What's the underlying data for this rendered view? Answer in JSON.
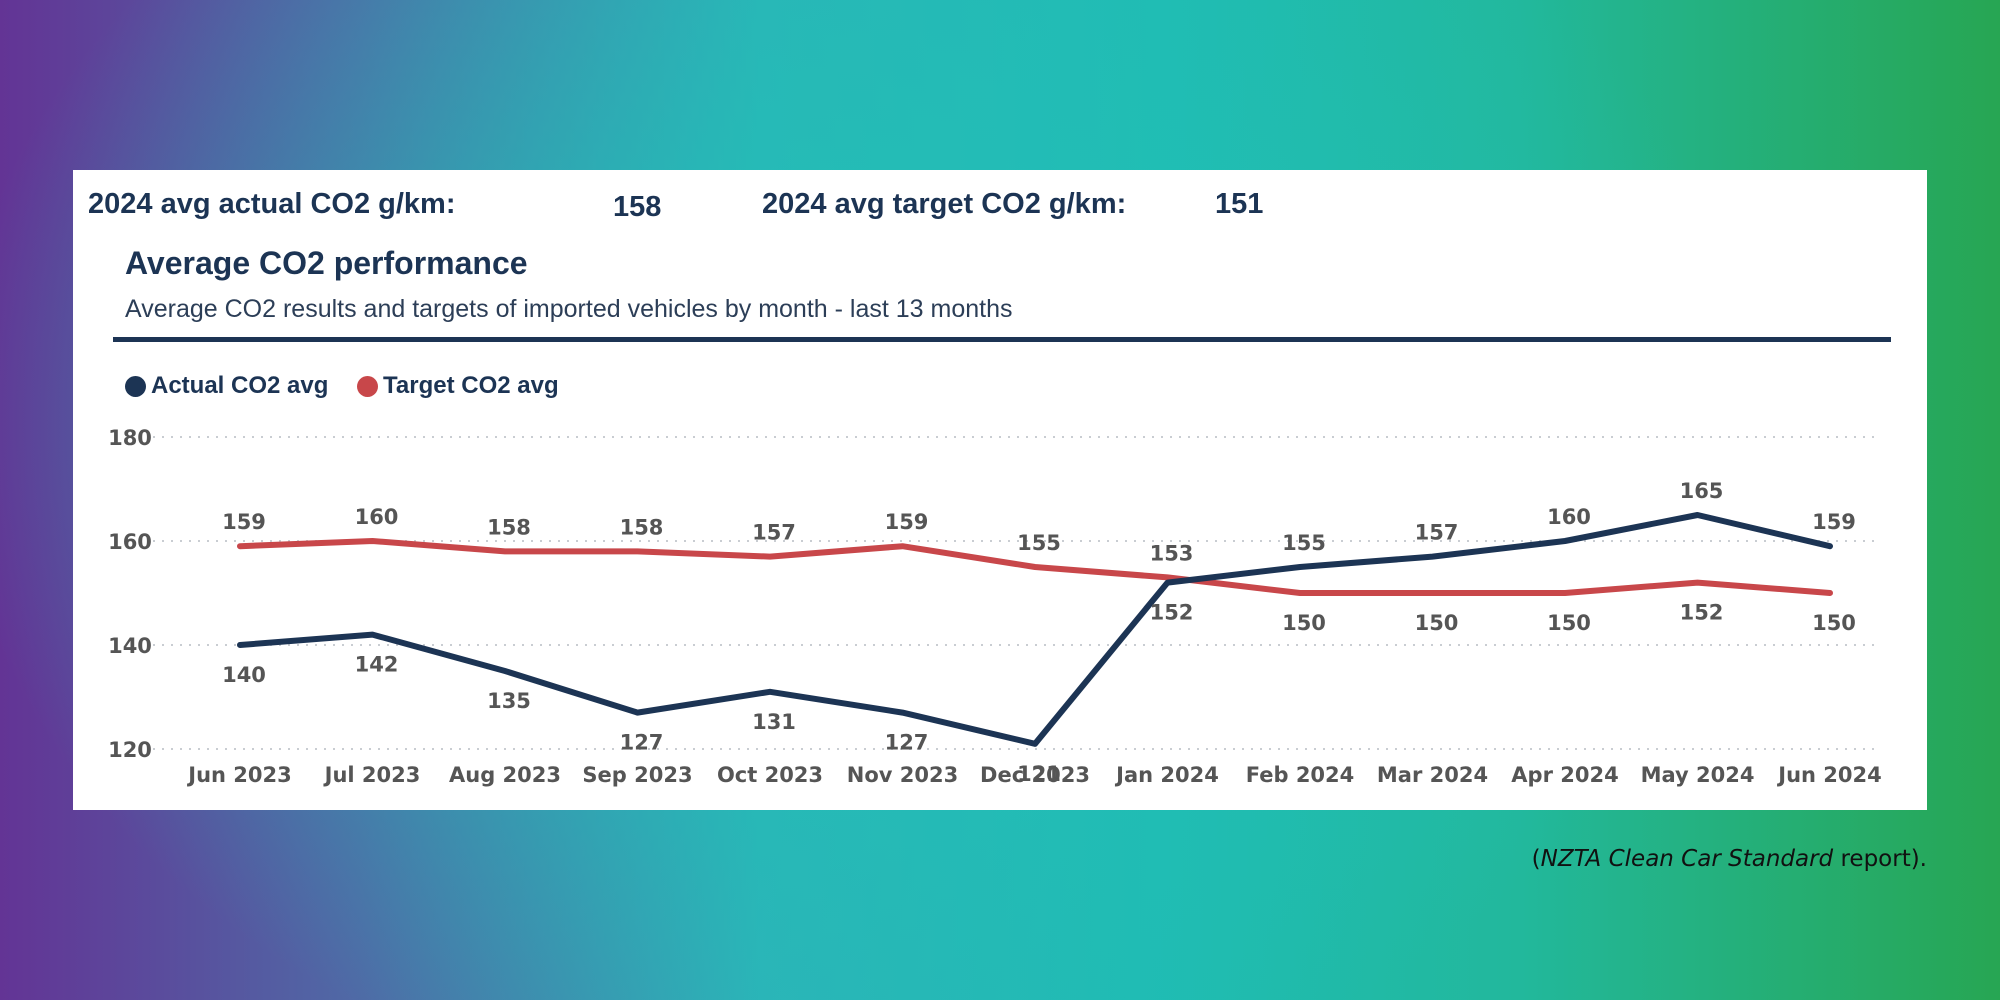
{
  "kpis": {
    "actual_label": "2024 avg actual CO2 g/km:",
    "actual_value": "158",
    "target_label": "2024 avg target CO2 g/km:",
    "target_value": "151"
  },
  "source": {
    "open": "(",
    "italic": "NZTA Clean Car Standard",
    "rest": " report)."
  },
  "chart_data": {
    "type": "line",
    "title": "Average CO2 performance",
    "subtitle": "Average CO2 results and targets of imported vehicles by month - last 13 months",
    "categories": [
      "Jun 2023",
      "Jul 2023",
      "Aug 2023",
      "Sep 2023",
      "Oct 2023",
      "Nov 2023",
      "Dec 2023",
      "Jan 2024",
      "Feb 2024",
      "Mar 2024",
      "Apr 2024",
      "May 2024",
      "Jun 2024"
    ],
    "series": [
      {
        "name": "Actual CO2 avg",
        "color": "#1c3454",
        "values": [
          140,
          142,
          135,
          127,
          131,
          127,
          121,
          152,
          155,
          157,
          160,
          165,
          159
        ]
      },
      {
        "name": "Target CO2 avg",
        "color": "#c8474a",
        "values": [
          159,
          160,
          158,
          158,
          157,
          159,
          155,
          153,
          150,
          150,
          150,
          152,
          150
        ]
      }
    ],
    "ylim": [
      120,
      180
    ],
    "yticks": [
      120,
      140,
      160,
      180
    ],
    "grid": true,
    "legend": "top-left"
  }
}
